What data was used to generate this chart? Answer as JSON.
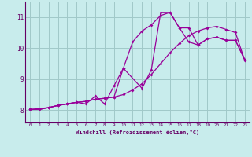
{
  "xlabel": "Windchill (Refroidissement éolien,°C)",
  "background_color": "#c8ecec",
  "grid_color": "#a0c8c8",
  "line_color": "#990099",
  "xlim": [
    -0.5,
    23.5
  ],
  "ylim": [
    7.6,
    11.5
  ],
  "yticks": [
    8,
    9,
    10,
    11
  ],
  "xticks": [
    0,
    1,
    2,
    3,
    4,
    5,
    6,
    7,
    8,
    9,
    10,
    11,
    12,
    13,
    14,
    15,
    16,
    17,
    18,
    19,
    20,
    21,
    22,
    23
  ],
  "series1_x": [
    0,
    1,
    2,
    3,
    4,
    5,
    6,
    7,
    8,
    9,
    10,
    11,
    12,
    13,
    14,
    15,
    16,
    17,
    18,
    19,
    20,
    21,
    22,
    23
  ],
  "series1_y": [
    8.02,
    8.02,
    8.08,
    8.15,
    8.2,
    8.25,
    8.28,
    8.35,
    8.38,
    8.42,
    8.5,
    8.65,
    8.85,
    9.15,
    9.5,
    9.85,
    10.15,
    10.4,
    10.55,
    10.65,
    10.7,
    10.6,
    10.5,
    9.6
  ],
  "series2_x": [
    0,
    1,
    2,
    3,
    4,
    5,
    6,
    7,
    8,
    9,
    10,
    11,
    12,
    13,
    14,
    15,
    16,
    17,
    18,
    19,
    20,
    21,
    22,
    23
  ],
  "series2_y": [
    8.02,
    8.02,
    8.08,
    8.15,
    8.2,
    8.25,
    8.28,
    8.35,
    8.38,
    8.42,
    9.35,
    10.2,
    10.55,
    10.75,
    11.05,
    11.15,
    10.65,
    10.2,
    10.1,
    10.3,
    10.35,
    10.25,
    10.25,
    9.62
  ],
  "series3_x": [
    0,
    2,
    3,
    4,
    5,
    6,
    7,
    8,
    9,
    10,
    12,
    13,
    14,
    15,
    16,
    17,
    18,
    19,
    20,
    21,
    22,
    23
  ],
  "series3_y": [
    8.02,
    8.08,
    8.15,
    8.2,
    8.25,
    8.2,
    8.45,
    8.2,
    8.78,
    9.35,
    8.7,
    9.3,
    11.15,
    11.15,
    10.65,
    10.65,
    10.1,
    10.3,
    10.35,
    10.25,
    10.25,
    9.62
  ]
}
